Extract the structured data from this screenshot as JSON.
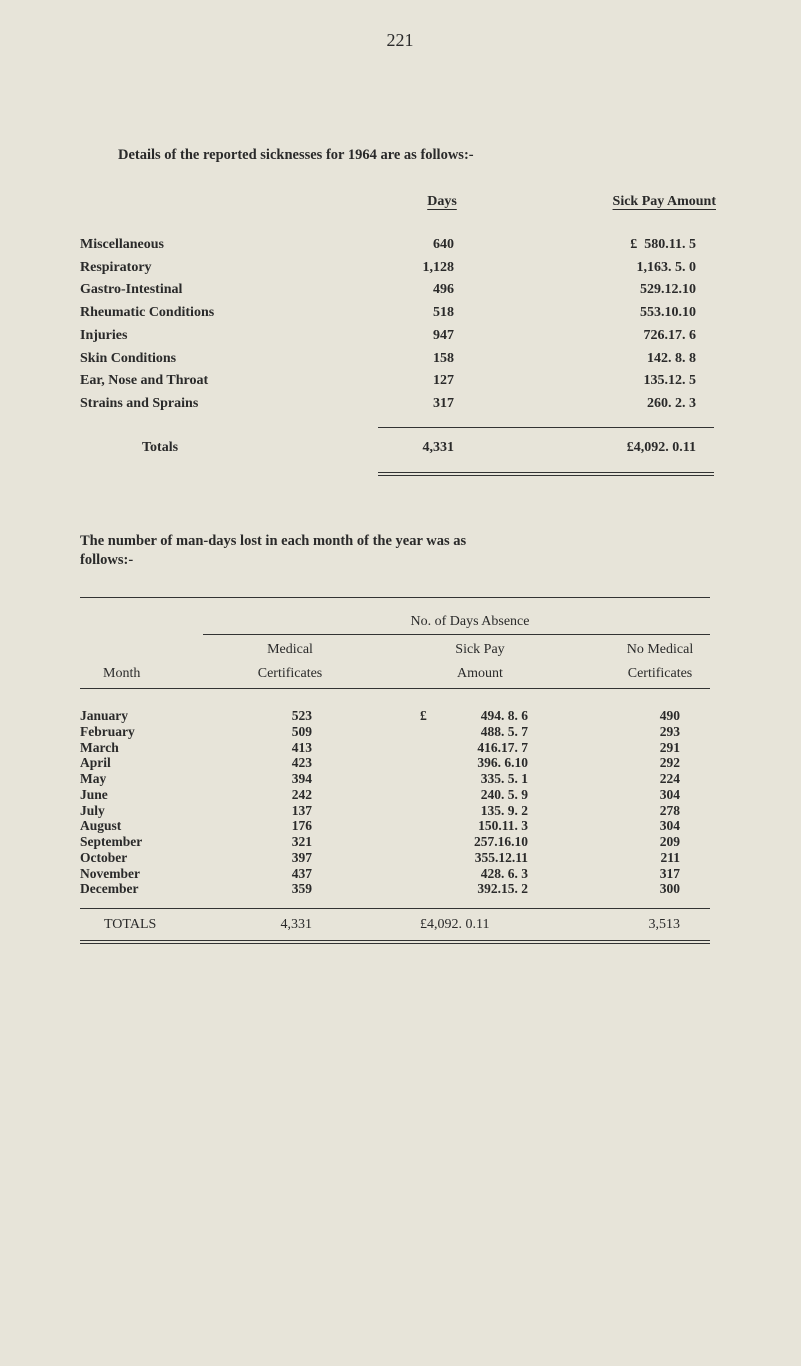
{
  "page_number": "221",
  "intro": "Details of the reported sicknesses for 1964 are as follows:-",
  "table1": {
    "headers": {
      "days": "Days",
      "amount": "Sick Pay Amount"
    },
    "rows": [
      {
        "label": "Miscellaneous",
        "days": "640",
        "amount": "£  580.11. 5"
      },
      {
        "label": "Respiratory",
        "days": "1,128",
        "amount": "1,163. 5. 0"
      },
      {
        "label": "Gastro-Intestinal",
        "days": "496",
        "amount": "529.12.10"
      },
      {
        "label": "Rheumatic Conditions",
        "days": "518",
        "amount": "553.10.10"
      },
      {
        "label": "Injuries",
        "days": "947",
        "amount": "726.17. 6"
      },
      {
        "label": "Skin Conditions",
        "days": "158",
        "amount": "142. 8. 8"
      },
      {
        "label": "Ear, Nose and Throat",
        "days": "127",
        "amount": "135.12. 5"
      },
      {
        "label": "Strains and Sprains",
        "days": "317",
        "amount": "260. 2. 3"
      }
    ],
    "totals": {
      "label": "Totals",
      "days": "4,331",
      "amount": "£4,092. 0.11"
    }
  },
  "paragraph2": [
    "The number of man-days lost in each month of the year was as",
    "follows:-"
  ],
  "table2": {
    "group_header": "No. of Days Absence",
    "headers": {
      "month": "Month",
      "medical": [
        "Medical",
        "Certificates"
      ],
      "amount": [
        "Sick Pay",
        "Amount"
      ],
      "no_medical": [
        "No Medical",
        "Certificates"
      ]
    },
    "rows": [
      {
        "month": "January",
        "medical": "523",
        "currency": "£",
        "amount": "494. 8. 6",
        "no_medical": "490"
      },
      {
        "month": "February",
        "medical": "509",
        "currency": "",
        "amount": "488. 5. 7",
        "no_medical": "293"
      },
      {
        "month": "March",
        "medical": "413",
        "currency": "",
        "amount": "416.17. 7",
        "no_medical": "291"
      },
      {
        "month": "April",
        "medical": "423",
        "currency": "",
        "amount": "396. 6.10",
        "no_medical": "292"
      },
      {
        "month": "May",
        "medical": "394",
        "currency": "",
        "amount": "335. 5. 1",
        "no_medical": "224"
      },
      {
        "month": "June",
        "medical": "242",
        "currency": "",
        "amount": "240. 5. 9",
        "no_medical": "304"
      },
      {
        "month": "July",
        "medical": "137",
        "currency": "",
        "amount": "135. 9. 2",
        "no_medical": "278"
      },
      {
        "month": "August",
        "medical": "176",
        "currency": "",
        "amount": "150.11. 3",
        "no_medical": "304"
      },
      {
        "month": "September",
        "medical": "321",
        "currency": "",
        "amount": "257.16.10",
        "no_medical": "209"
      },
      {
        "month": "October",
        "medical": "397",
        "currency": "",
        "amount": "355.12.11",
        "no_medical": "211"
      },
      {
        "month": "November",
        "medical": "437",
        "currency": "",
        "amount": "428. 6. 3",
        "no_medical": "317"
      },
      {
        "month": "December",
        "medical": "359",
        "currency": "",
        "amount": "392.15. 2",
        "no_medical": "300"
      }
    ],
    "totals": {
      "label": "TOTALS",
      "medical": "4,331",
      "amount": "£4,092. 0.11",
      "no_medical": "3,513"
    }
  }
}
